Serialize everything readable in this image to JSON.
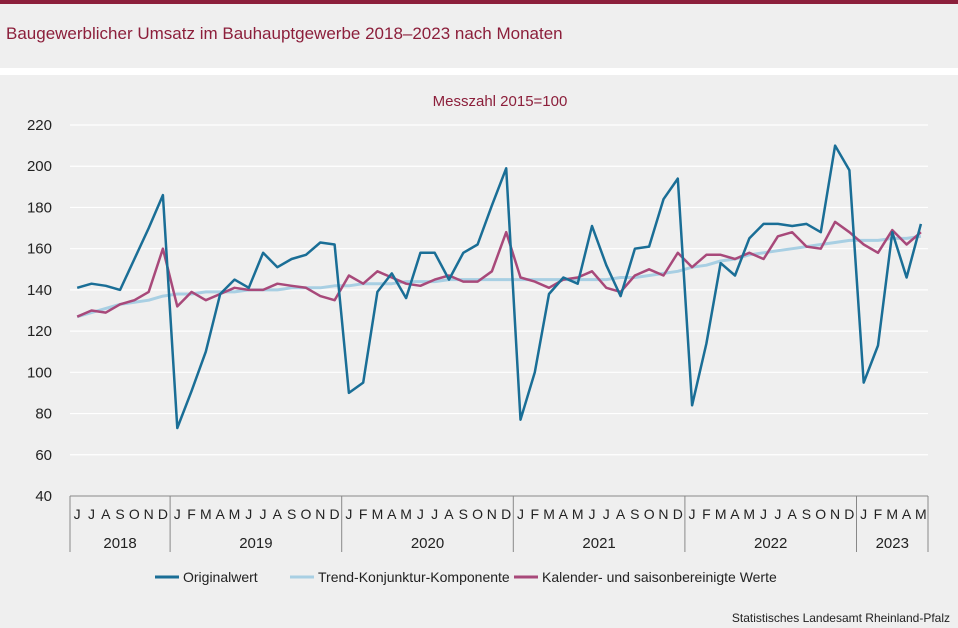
{
  "title": "Baugewerblicher Umsatz im Bauhauptgewerbe 2018–2023 nach Monaten",
  "source": "Statistisches Landesamt Rheinland-Pfalz",
  "colors": {
    "accent": "#8c1f3b",
    "original": "#1a6e96",
    "trend": "#a8cfe3",
    "adjusted": "#a8497a"
  },
  "chart_data": {
    "type": "line",
    "subtitle": "Messzahl 2015=100",
    "ylim": [
      40,
      220
    ],
    "yticks": [
      40,
      60,
      80,
      100,
      120,
      140,
      160,
      180,
      200,
      220
    ],
    "grid": true,
    "legend_position": "bottom",
    "month_labels": [
      "J",
      "J",
      "A",
      "S",
      "O",
      "N",
      "D",
      "J",
      "F",
      "M",
      "A",
      "M",
      "J",
      "J",
      "A",
      "S",
      "O",
      "N",
      "D",
      "J",
      "F",
      "M",
      "A",
      "M",
      "J",
      "J",
      "A",
      "S",
      "O",
      "N",
      "D",
      "J",
      "F",
      "M",
      "A",
      "M",
      "J",
      "J",
      "A",
      "S",
      "O",
      "N",
      "D",
      "J",
      "F",
      "M",
      "A",
      "M",
      "J",
      "J",
      "A",
      "S",
      "O",
      "N",
      "D",
      "J",
      "F",
      "M",
      "A",
      "M"
    ],
    "year_groups": [
      {
        "label": "2018",
        "count": 7
      },
      {
        "label": "2019",
        "count": 12
      },
      {
        "label": "2020",
        "count": 12
      },
      {
        "label": "2021",
        "count": 12
      },
      {
        "label": "2022",
        "count": 12
      },
      {
        "label": "2023",
        "count": 5
      }
    ],
    "series": [
      {
        "name": "Originalwert",
        "color": "#1a6e96",
        "values": [
          141,
          143,
          142,
          140,
          155,
          170,
          186,
          73,
          91,
          110,
          138,
          145,
          141,
          158,
          151,
          155,
          157,
          163,
          162,
          90,
          95,
          139,
          148,
          136,
          158,
          158,
          145,
          158,
          162,
          181,
          199,
          77,
          100,
          138,
          146,
          143,
          171,
          152,
          137,
          160,
          161,
          184,
          194,
          84,
          114,
          153,
          147,
          165,
          172,
          172,
          171,
          172,
          168,
          210,
          198,
          95,
          113,
          168,
          146,
          172
        ]
      },
      {
        "name": "Trend-Konjunktur-Komponente",
        "color": "#a8cfe3",
        "values": [
          127,
          129,
          131,
          133,
          134,
          135,
          137,
          138,
          138,
          139,
          139,
          139,
          140,
          140,
          140,
          141,
          141,
          141,
          142,
          142,
          143,
          143,
          143,
          144,
          144,
          144,
          145,
          145,
          145,
          145,
          145,
          145,
          145,
          145,
          145,
          145,
          145,
          145,
          146,
          146,
          147,
          148,
          149,
          151,
          152,
          154,
          155,
          157,
          158,
          159,
          160,
          161,
          162,
          163,
          164,
          164,
          164,
          165,
          165,
          166
        ]
      },
      {
        "name": "Kalender- und saisonbereinigte Werte",
        "color": "#a8497a",
        "values": [
          127,
          130,
          129,
          133,
          135,
          139,
          160,
          132,
          139,
          135,
          138,
          141,
          140,
          140,
          143,
          142,
          141,
          137,
          135,
          147,
          143,
          149,
          146,
          143,
          142,
          145,
          147,
          144,
          144,
          149,
          168,
          146,
          144,
          141,
          145,
          146,
          149,
          141,
          139,
          147,
          150,
          147,
          158,
          151,
          157,
          157,
          155,
          158,
          155,
          166,
          168,
          161,
          160,
          173,
          168,
          162,
          158,
          169,
          162,
          168
        ]
      }
    ]
  }
}
